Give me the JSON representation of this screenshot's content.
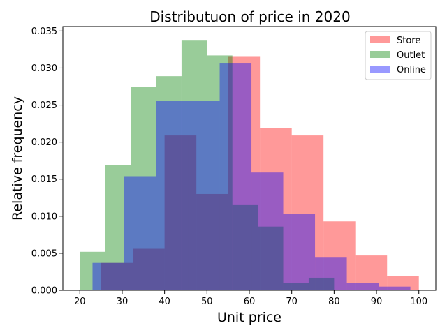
{
  "chart_data": {
    "type": "bar",
    "title": "Distributuon of price in 2020",
    "xlabel": "Unit price",
    "ylabel": "Relative frequency",
    "xlim": [
      16.0,
      104.0
    ],
    "ylim": [
      0,
      0.0356
    ],
    "xticks": [
      20,
      30,
      40,
      50,
      60,
      70,
      80,
      90,
      100
    ],
    "yticks": [
      0.0,
      0.005,
      0.01,
      0.015,
      0.02,
      0.025,
      0.03,
      0.035
    ],
    "ytick_labels": [
      "0.000",
      "0.005",
      "0.010",
      "0.015",
      "0.020",
      "0.025",
      "0.030",
      "0.035"
    ],
    "grid": false,
    "legend_position": "top-right",
    "series": [
      {
        "name": "Store",
        "color": "#ff0000",
        "opacity": 0.4,
        "bins": [
          [
            25.0,
            32.5,
            0.0037
          ],
          [
            32.5,
            40.0,
            0.0056
          ],
          [
            40.0,
            47.5,
            0.0209
          ],
          [
            47.5,
            55.0,
            0.013
          ],
          [
            55.0,
            62.5,
            0.0316
          ],
          [
            62.5,
            70.0,
            0.0219
          ],
          [
            70.0,
            77.5,
            0.0209
          ],
          [
            77.5,
            85.0,
            0.0093
          ],
          [
            85.0,
            92.5,
            0.0047
          ],
          [
            92.5,
            100.0,
            0.0019
          ]
        ]
      },
      {
        "name": "Outlet",
        "color": "#008000",
        "opacity": 0.4,
        "bins": [
          [
            20.0,
            26.0,
            0.0052
          ],
          [
            26.0,
            32.0,
            0.0169
          ],
          [
            32.0,
            38.0,
            0.0275
          ],
          [
            38.0,
            44.0,
            0.0289
          ],
          [
            44.0,
            50.0,
            0.0337
          ],
          [
            50.0,
            56.0,
            0.0317
          ],
          [
            56.0,
            62.0,
            0.0115
          ],
          [
            62.0,
            68.0,
            0.0086
          ],
          [
            68.0,
            74.0,
            0.001
          ],
          [
            74.0,
            80.0,
            0.0017
          ]
        ]
      },
      {
        "name": "Online",
        "color": "#0000ff",
        "opacity": 0.4,
        "bins": [
          [
            23.0,
            30.5,
            0.0037
          ],
          [
            30.5,
            38.0,
            0.0154
          ],
          [
            38.0,
            45.5,
            0.0256
          ],
          [
            45.5,
            53.0,
            0.0256
          ],
          [
            53.0,
            60.5,
            0.0307
          ],
          [
            60.5,
            68.0,
            0.0159
          ],
          [
            68.0,
            75.5,
            0.0103
          ],
          [
            75.5,
            83.0,
            0.0045
          ],
          [
            83.0,
            90.5,
            0.001
          ],
          [
            90.5,
            98.0,
            0.0005
          ]
        ]
      }
    ]
  }
}
